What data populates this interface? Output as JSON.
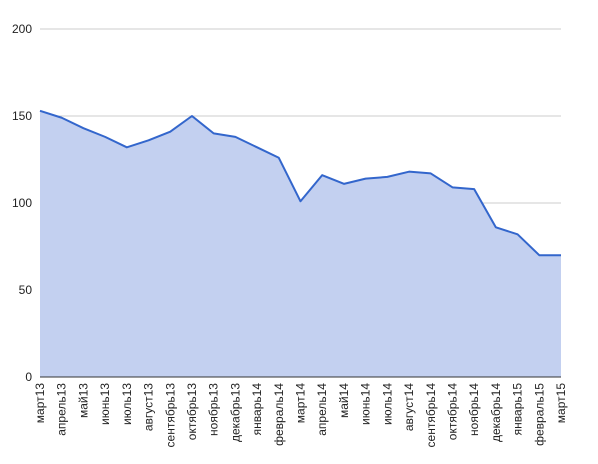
{
  "chart_data": {
    "type": "area",
    "title": "",
    "xlabel": "",
    "ylabel": "",
    "ylim": [
      0,
      200
    ],
    "yticks": [
      0,
      50,
      100,
      150,
      200
    ],
    "grid": true,
    "legend": "none",
    "colors": {
      "line": "#3366cc",
      "fill": "#c3d0f0",
      "grid": "#cccccc",
      "axis": "#333333",
      "text": "#222222"
    },
    "categories": [
      "март13",
      "апрель13",
      "май13",
      "июнь13",
      "июль13",
      "август13",
      "сентябрь13",
      "октябрь13",
      "ноябрь13",
      "декабрь13",
      "январь14",
      "февраль14",
      "март14",
      "апрель14",
      "май14",
      "июнь14",
      "июль14",
      "август14",
      "сентябрь14",
      "октябрь14",
      "ноябрь14",
      "декабрь14",
      "январь15",
      "февраль15",
      "март15"
    ],
    "series": [
      {
        "values": [
          153,
          149,
          143,
          138,
          132,
          136,
          141,
          150,
          140,
          138,
          132,
          126,
          101,
          116,
          111,
          114,
          115,
          118,
          117,
          109,
          108,
          86,
          82,
          70,
          70
        ]
      }
    ]
  }
}
